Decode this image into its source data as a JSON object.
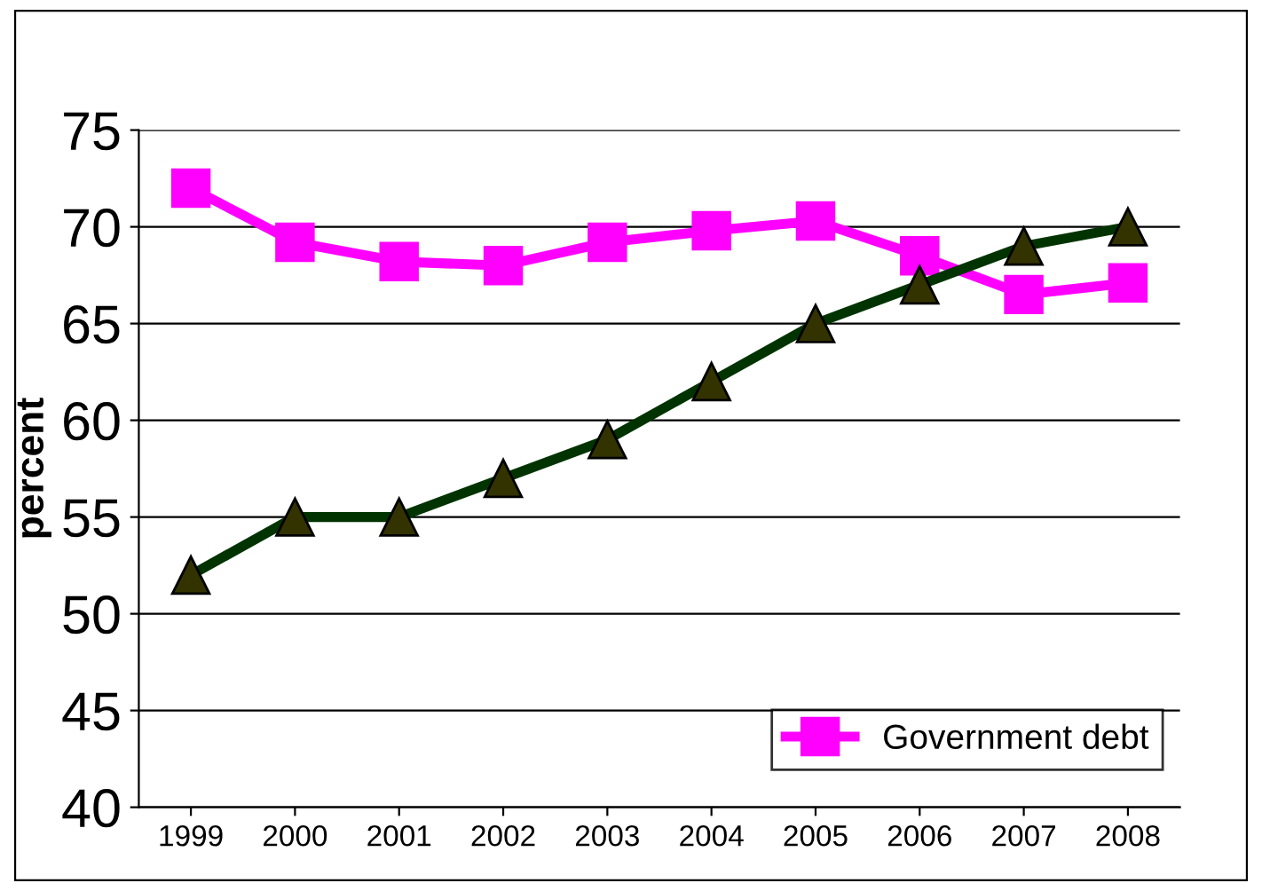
{
  "chart_data": {
    "type": "line",
    "ylabel": "percent",
    "categories": [
      "1999",
      "2000",
      "2001",
      "2002",
      "2003",
      "2004",
      "2005",
      "2006",
      "2007",
      "2008"
    ],
    "series": [
      {
        "name": "Government debt",
        "color": "#ff00ff",
        "marker": "square",
        "values": [
          72,
          69.2,
          68.2,
          68,
          69.2,
          69.8,
          70.3,
          68.5,
          66.5,
          67.1
        ]
      },
      {
        "color": "#003300",
        "marker": "triangle",
        "values": [
          52,
          55,
          55,
          57,
          59,
          62,
          65,
          67,
          69,
          70
        ]
      }
    ],
    "ylim": [
      40,
      75
    ],
    "yticks": [
      40,
      45,
      50,
      55,
      60,
      65,
      70,
      75
    ],
    "grid": "y",
    "legend": "bottom right",
    "line_style": "solid"
  }
}
